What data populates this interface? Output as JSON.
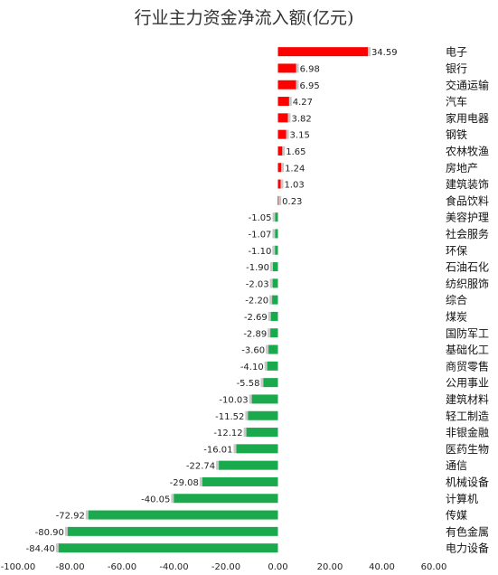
{
  "chart_data": {
    "type": "bar",
    "orientation": "horizontal",
    "title": "行业主力资金净流入额(亿元)",
    "xlabel": "",
    "ylabel": "",
    "xlim": [
      -100,
      60
    ],
    "x_ticks": [
      "-100.00",
      "-80.00",
      "-60.00",
      "-40.00",
      "-20.00",
      "0.00",
      "20.00",
      "40.00",
      "60.00"
    ],
    "x_tick_values": [
      -100,
      -80,
      -60,
      -40,
      -20,
      0,
      20,
      40,
      60
    ],
    "grid": false,
    "legend": "none",
    "colors": {
      "positive": "#ff0000",
      "negative": "#1aa94c",
      "shadow": "#c8c8c8"
    },
    "categories": [
      "电子",
      "银行",
      "交通运输",
      "汽车",
      "家用电器",
      "钢铁",
      "农林牧渔",
      "房地产",
      "建筑装饰",
      "食品饮料",
      "美容护理",
      "社会服务",
      "环保",
      "石油石化",
      "纺织服饰",
      "综合",
      "煤炭",
      "国防军工",
      "基础化工",
      "商贸零售",
      "公用事业",
      "建筑材料",
      "轻工制造",
      "非银金融",
      "医药生物",
      "通信",
      "机械设备",
      "计算机",
      "传媒",
      "有色金属",
      "电力设备"
    ],
    "values": [
      34.59,
      6.98,
      6.95,
      4.27,
      3.82,
      3.15,
      1.65,
      1.24,
      1.03,
      0.23,
      -1.05,
      -1.07,
      -1.1,
      -1.9,
      -2.03,
      -2.2,
      -2.69,
      -2.89,
      -3.6,
      -4.1,
      -5.58,
      -10.03,
      -11.52,
      -12.12,
      -16.01,
      -22.74,
      -29.08,
      -40.05,
      -72.92,
      -80.9,
      -84.4
    ],
    "value_labels": [
      "34.59",
      "6.98",
      "6.95",
      "4.27",
      "3.82",
      "3.15",
      "1.65",
      "1.24",
      "1.03",
      "0.23",
      "-1.05",
      "-1.07",
      "-1.10",
      "-1.90",
      "-2.03",
      "-2.20",
      "-2.69",
      "-2.89",
      "-3.60",
      "-4.10",
      "-5.58",
      "-10.03",
      "-11.52",
      "-12.12",
      "-16.01",
      "-22.74",
      "-29.08",
      "-40.05",
      "-72.92",
      "-80.90",
      "-84.40"
    ]
  }
}
